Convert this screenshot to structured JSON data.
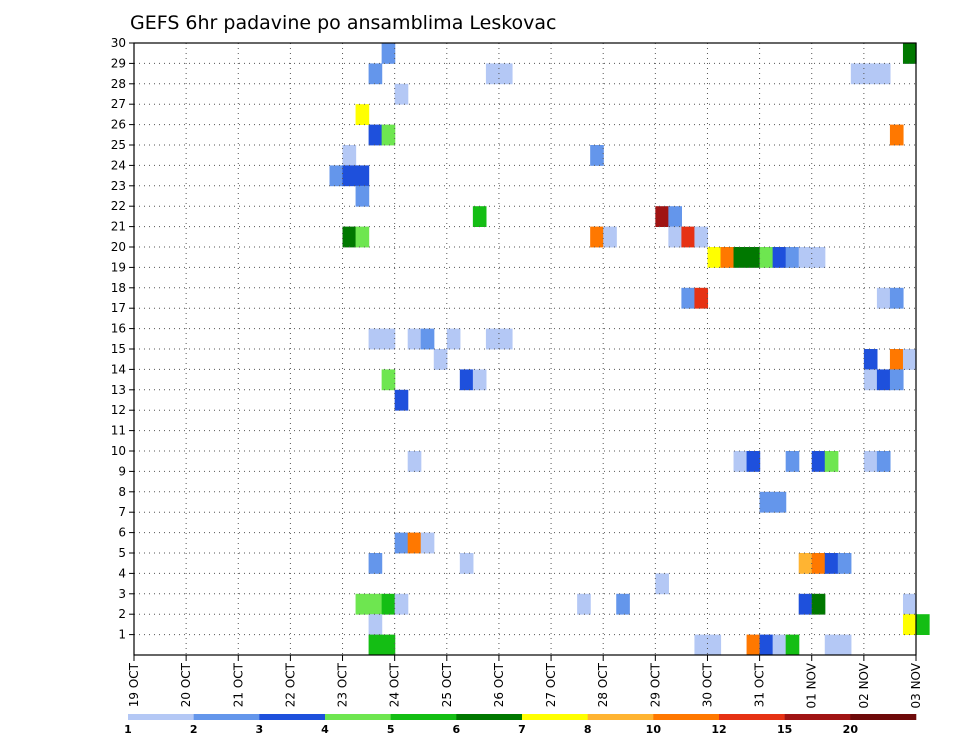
{
  "chart_data": {
    "type": "heatmap",
    "title": "GEFS 6hr padavine po ansamblima Leskovac",
    "y_ticks": [
      "1",
      "2",
      "3",
      "4",
      "5",
      "6",
      "7",
      "8",
      "9",
      "10",
      "11",
      "12",
      "13",
      "14",
      "15",
      "16",
      "17",
      "18",
      "19",
      "20",
      "21",
      "22",
      "23",
      "24",
      "25",
      "26",
      "27",
      "28",
      "29",
      "30"
    ],
    "x_ticks": [
      "19 OCT",
      "20 OCT",
      "21 OCT",
      "22 OCT",
      "23 OCT",
      "24 OCT",
      "25 OCT",
      "26 OCT",
      "27 OCT",
      "28 OCT",
      "29 OCT",
      "30 OCT",
      "31 OCT",
      "01 NOV",
      "02 NOV",
      "03 NOV"
    ],
    "x_range": [
      "19 OCT 00Z",
      "03 NOV 00Z"
    ],
    "y_range": [
      0,
      30
    ],
    "grid": true,
    "colorbar": {
      "labels": [
        "1",
        "2",
        "3",
        "4",
        "5",
        "6",
        "7",
        "8",
        "10",
        "12",
        "15",
        "20"
      ],
      "colors": [
        "#b4c8f5",
        "#6496eb",
        "#1e50dc",
        "#6ee650",
        "#14be14",
        "#007800",
        "#ffff00",
        "#ffb432",
        "#ff7800",
        "#e63214",
        "#a01414",
        "#6e0a0a"
      ]
    },
    "units_note": "cells: [member, day offset from 19 OCT 00Z (6-hour steps of 0.25), precipitation class 1-12]",
    "cells": [
      [
        30,
        4.75,
        2
      ],
      [
        30,
        14.75,
        1
      ],
      [
        30,
        14.75,
        1
      ],
      [
        30,
        14.75,
        6
      ],
      [
        29,
        4.5,
        2
      ],
      [
        29,
        6.75,
        1
      ],
      [
        29,
        7.0,
        1
      ],
      [
        29,
        13.75,
        1
      ],
      [
        29,
        14.0,
        1
      ],
      [
        29,
        14.25,
        1
      ],
      [
        28,
        5.0,
        1
      ],
      [
        27,
        4.25,
        7
      ],
      [
        26,
        4.5,
        3
      ],
      [
        26,
        4.75,
        4
      ],
      [
        26,
        14.5,
        9
      ],
      [
        25,
        4.0,
        1
      ],
      [
        25,
        8.75,
        2
      ],
      [
        24,
        3.75,
        2
      ],
      [
        24,
        4.0,
        3
      ],
      [
        24,
        4.25,
        3
      ],
      [
        23,
        4.25,
        2
      ],
      [
        22,
        6.5,
        5
      ],
      [
        22,
        10.0,
        11
      ],
      [
        22,
        10.25,
        2
      ],
      [
        21,
        4.0,
        6
      ],
      [
        21,
        4.25,
        4
      ],
      [
        21,
        8.75,
        9
      ],
      [
        21,
        9.0,
        1
      ],
      [
        21,
        10.25,
        1
      ],
      [
        21,
        10.5,
        10
      ],
      [
        21,
        10.75,
        1
      ],
      [
        20,
        11.0,
        7
      ],
      [
        20,
        11.25,
        9
      ],
      [
        20,
        11.5,
        6
      ],
      [
        20,
        11.75,
        6
      ],
      [
        20,
        12.0,
        4
      ],
      [
        20,
        12.25,
        3
      ],
      [
        20,
        12.5,
        2
      ],
      [
        20,
        12.75,
        1
      ],
      [
        20,
        13.0,
        1
      ],
      [
        18,
        10.5,
        2
      ],
      [
        18,
        10.75,
        10
      ],
      [
        18,
        14.25,
        1
      ],
      [
        18,
        14.5,
        2
      ],
      [
        16,
        4.5,
        1
      ],
      [
        16,
        4.75,
        1
      ],
      [
        16,
        5.25,
        1
      ],
      [
        16,
        5.5,
        2
      ],
      [
        16,
        6.0,
        1
      ],
      [
        16,
        6.75,
        1
      ],
      [
        16,
        7.0,
        1
      ],
      [
        15,
        5.75,
        1
      ],
      [
        15,
        14.0,
        3
      ],
      [
        15,
        14.5,
        9
      ],
      [
        15,
        14.75,
        1
      ],
      [
        14,
        4.75,
        4
      ],
      [
        14,
        6.25,
        3
      ],
      [
        14,
        6.5,
        1
      ],
      [
        14,
        14.0,
        1
      ],
      [
        14,
        14.25,
        3
      ],
      [
        14,
        14.5,
        2
      ],
      [
        13,
        5.0,
        3
      ],
      [
        10,
        5.25,
        1
      ],
      [
        10,
        11.5,
        1
      ],
      [
        10,
        11.75,
        3
      ],
      [
        10,
        12.5,
        2
      ],
      [
        10,
        13.0,
        3
      ],
      [
        10,
        13.25,
        4
      ],
      [
        10,
        14.0,
        1
      ],
      [
        10,
        14.25,
        2
      ],
      [
        8,
        12.0,
        2
      ],
      [
        8,
        12.25,
        2
      ],
      [
        6,
        5.0,
        2
      ],
      [
        6,
        5.25,
        9
      ],
      [
        6,
        5.5,
        1
      ],
      [
        5,
        4.5,
        2
      ],
      [
        5,
        6.25,
        1
      ],
      [
        5,
        12.75,
        8
      ],
      [
        5,
        13.0,
        9
      ],
      [
        5,
        13.25,
        3
      ],
      [
        5,
        13.5,
        2
      ],
      [
        4,
        10.0,
        1
      ],
      [
        3,
        4.25,
        4
      ],
      [
        3,
        4.5,
        4
      ],
      [
        3,
        4.75,
        5
      ],
      [
        3,
        5.0,
        1
      ],
      [
        3,
        8.5,
        1
      ],
      [
        3,
        9.25,
        2
      ],
      [
        3,
        12.75,
        3
      ],
      [
        3,
        13.0,
        6
      ],
      [
        3,
        14.75,
        1
      ],
      [
        2,
        4.5,
        1
      ],
      [
        2,
        14.75,
        7
      ],
      [
        2,
        15.0,
        5
      ],
      [
        1,
        4.5,
        5
      ],
      [
        1,
        4.75,
        5
      ],
      [
        1,
        10.75,
        1
      ],
      [
        1,
        11.0,
        1
      ],
      [
        1,
        11.75,
        9
      ],
      [
        1,
        12.0,
        3
      ],
      [
        1,
        12.25,
        1
      ],
      [
        1,
        12.5,
        5
      ],
      [
        1,
        13.25,
        1
      ],
      [
        1,
        13.5,
        1
      ]
    ]
  }
}
